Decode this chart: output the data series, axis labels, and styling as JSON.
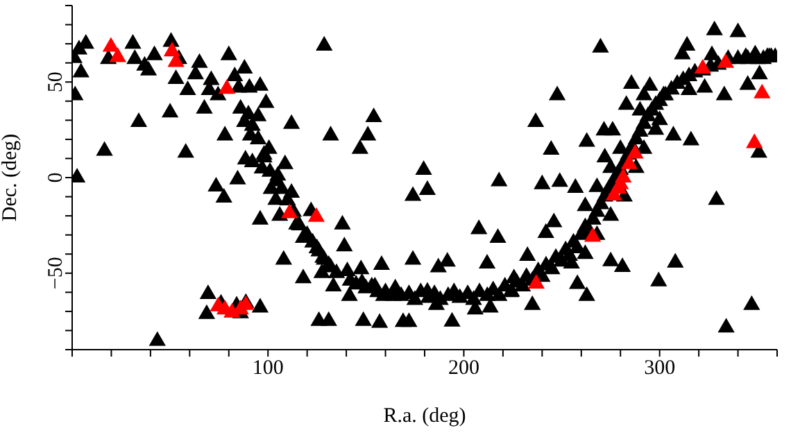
{
  "chart_data": {
    "type": "scatter",
    "xlabel": "R.a. (deg)",
    "ylabel": "Dec. (deg)",
    "marker": "triangle",
    "grid": false,
    "legend": false,
    "xlim": [
      0,
      360
    ],
    "ylim": [
      -90,
      90
    ],
    "xticks": [
      {
        "value": 0,
        "label": null
      },
      {
        "value": 20,
        "label": null
      },
      {
        "value": 40,
        "label": null
      },
      {
        "value": 60,
        "label": null
      },
      {
        "value": 80,
        "label": null
      },
      100,
      {
        "value": 120,
        "label": null
      },
      {
        "value": 140,
        "label": null
      },
      {
        "value": 160,
        "label": null
      },
      {
        "value": 180,
        "label": null
      },
      200,
      {
        "value": 220,
        "label": null
      },
      {
        "value": 240,
        "label": null
      },
      {
        "value": 260,
        "label": null
      },
      {
        "value": 280,
        "label": null
      },
      300,
      {
        "value": 320,
        "label": null
      },
      {
        "value": 340,
        "label": null
      },
      {
        "value": 360,
        "label": null
      }
    ],
    "yticks": [
      {
        "value": -90,
        "label": null
      },
      {
        "value": -80,
        "label": null
      },
      {
        "value": -70,
        "label": null
      },
      {
        "value": -60,
        "label": null
      },
      {
        "value": -50,
        "label": "−50"
      },
      {
        "value": -40,
        "label": null
      },
      {
        "value": -30,
        "label": null
      },
      {
        "value": -20,
        "label": null
      },
      {
        "value": -10,
        "label": null
      },
      0,
      {
        "value": 10,
        "label": null
      },
      {
        "value": 20,
        "label": null
      },
      {
        "value": 30,
        "label": null
      },
      {
        "value": 40,
        "label": null
      },
      50,
      {
        "value": 60,
        "label": null
      },
      {
        "value": 70,
        "label": null
      },
      {
        "value": 80,
        "label": null
      },
      {
        "value": 90,
        "label": null
      }
    ],
    "series": [
      {
        "color": "#000000",
        "x": [
          1,
          3.5,
          7,
          4.5,
          1.5,
          2.5,
          16.5,
          18.5,
          31,
          34,
          32,
          37,
          39,
          42,
          50.5,
          50,
          53,
          54.5,
          58,
          59,
          63,
          65,
          67.5,
          70,
          71,
          73.5,
          74.5,
          77.5,
          78,
          80,
          83,
          84.5,
          85,
          86,
          88,
          88,
          90.5,
          91,
          88.5,
          92,
          96,
          95,
          96,
          97,
          98,
          99,
          100.5,
          101.6,
          104,
          105,
          106,
          108.7,
          108,
          112,
          112,
          114.6,
          118,
          118,
          122,
          122.8,
          126,
          127.5,
          128.7,
          128.7,
          131,
          132,
          133.4,
          138,
          139,
          140.5,
          141.6,
          147,
          147.5,
          151,
          154,
          154.6,
          158,
          159,
          164,
          157,
          148.7,
          131,
          126,
          43.5,
          68.7,
          69.4,
          96,
          88.7,
          76,
          84,
          86,
          269.8,
          247.7,
          236.7,
          244.6,
          179.5,
          181.4,
          174,
          218,
          207.7,
          217.4,
          174,
          187,
          191.6,
          211.9,
          240,
          249,
          246,
          241.9,
          262.8,
          257,
          271.6,
          276,
          272,
          285.6,
          283,
          292,
          295,
          307,
          316,
          329,
          308,
          299.5,
          281,
          275,
          262.8,
          258,
          232.5,
          225.6,
          334,
          347,
          350.7,
          351,
          345,
          356,
          340,
          328,
          333,
          314,
          311.6,
          323,
          326.7,
          335,
          344,
          348.8,
          353,
          357,
          315,
          302,
          169,
          172,
          194,
          205.8,
          213.5,
          224.4,
          235,
          181.4,
          186,
          160,
          165,
          168,
          172,
          175,
          178,
          182,
          185,
          188,
          192,
          195,
          198,
          202,
          205,
          208,
          212,
          215,
          218,
          221,
          224,
          227,
          230,
          232,
          235,
          238,
          240,
          242,
          245,
          247,
          250,
          252,
          254,
          256,
          258,
          260,
          262,
          264,
          266,
          268,
          270,
          272,
          274,
          276,
          278,
          280,
          282,
          284,
          286,
          288,
          290,
          292,
          294,
          296,
          298,
          300,
          303,
          306,
          309,
          312,
          315,
          318,
          322,
          326,
          330,
          340,
          345,
          350,
          355,
          359,
          255,
          262,
          268,
          275,
          282,
          288,
          292,
          298,
          275,
          268,
          262,
          280,
          290,
          300,
          142,
          145,
          148,
          150,
          153,
          156,
          135,
          132,
          128,
          125,
          120,
          116,
          113,
          110,
          107,
          104,
          101,
          98,
          95,
          92,
          90
        ],
        "values": [
          62.5,
          67,
          70,
          55,
          43,
          0,
          14,
          62,
          70,
          29,
          62,
          58.5,
          56,
          64,
          71,
          34,
          51.5,
          62,
          13,
          45.7,
          54,
          60,
          36,
          45.7,
          51,
          -4.7,
          43,
          -10.5,
          22,
          64,
          53,
          -1,
          47,
          36,
          57,
          29,
          47,
          22,
          9.4,
          8,
          48,
          32,
          -22,
          4.7,
          10.5,
          39,
          15,
          -6,
          -11.7,
          1,
          -20,
          7,
          -43,
          -8,
          28,
          -24.6,
          -52.7,
          -31.6,
          -17.6,
          -34,
          -38.6,
          -50,
          69,
          -43,
          -45.7,
          22,
          -57,
          -24.6,
          -36,
          -49,
          -62,
          15,
          -48,
          22,
          31.6,
          -57,
          -45.7,
          -62,
          -62,
          -76,
          -75,
          -75,
          -75,
          -85.5,
          -71.4,
          -61,
          -68,
          -65.6,
          -66,
          -67,
          -71,
          68,
          43,
          29,
          14.5,
          4,
          -6.5,
          -9.6,
          -2,
          -27,
          -31.6,
          -43,
          -47,
          -44,
          -45,
          -3.5,
          -2.3,
          -23.4,
          -29,
          18.7,
          -5.4,
          24.6,
          24.6,
          10.5,
          49,
          38,
          43,
          48,
          22,
          19.4,
          -11.7,
          -44.5,
          -54.3,
          -46.8,
          -43.8,
          -62,
          -55.7,
          -41,
          -52.7,
          -78.5,
          -66.7,
          13,
          54,
          48.5,
          63,
          76,
          77,
          43,
          69,
          64.4,
          47,
          64,
          62,
          63,
          64.4,
          62,
          63,
          45.7,
          43,
          -75.6,
          -75.6,
          -75.4,
          -69,
          -68,
          -59.7,
          -66.7,
          -59.7,
          -66.7,
          -60,
          -58,
          -62,
          -61,
          -64,
          -60,
          -63,
          -61,
          -64,
          -62,
          -60,
          -63,
          -61,
          -64,
          -60,
          -62,
          -59,
          -62,
          -57,
          -60,
          -55,
          -57,
          -52,
          -54,
          -49,
          -52,
          -46,
          -48,
          -42,
          -44,
          -38,
          -41,
          -34,
          -37,
          -30,
          -26,
          -28,
          -22,
          -18,
          -14,
          -10,
          -6,
          -3,
          1,
          4,
          8,
          12,
          16,
          20,
          24,
          28,
          32,
          35,
          38,
          40,
          43,
          46,
          49,
          51,
          53,
          55,
          56,
          58,
          59,
          62,
          62,
          62,
          63,
          63,
          -45,
          -40,
          -30,
          -20,
          -10,
          5,
          15,
          25,
          5,
          -5,
          -15,
          15,
          35,
          30,
          -54,
          -56,
          -55,
          -58,
          -57,
          -60,
          -50,
          -47,
          -42,
          -37,
          -30,
          -25,
          -18,
          -12,
          -6,
          -2,
          3,
          12,
          20,
          27,
          33
        ]
      },
      {
        "color": "#ff0000",
        "x": [
          19.8,
          23.3,
          51,
          53,
          79,
          111,
          124.7,
          74.6,
          78,
          81.6,
          86,
          88.7,
          322,
          333.7,
          352.3,
          348.4,
          287.5,
          284.5,
          281.4,
          280,
          279,
          276.7,
          265.8,
          237
        ],
        "values": [
          68.4,
          63,
          66,
          60.4,
          46.4,
          -18.7,
          -20.6,
          -67.4,
          -69,
          -70.7,
          -69,
          -66.7,
          57,
          60,
          44,
          18,
          12.5,
          7,
          0,
          -3.5,
          -5.9,
          -9.4,
          -31,
          -55.5
        ]
      }
    ]
  }
}
